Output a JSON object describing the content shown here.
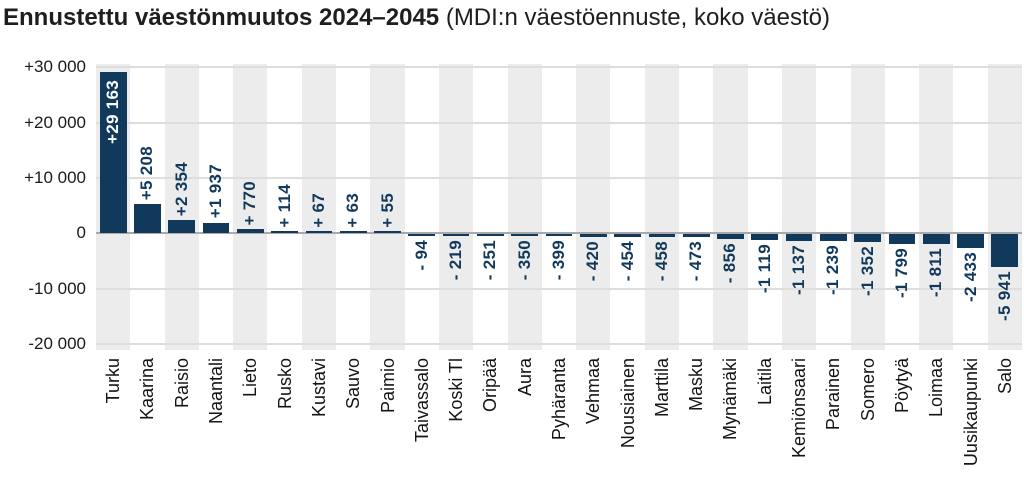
{
  "page": {
    "title_main": "Ennustettu väestönmuutos 2024–2045",
    "title_sub": " (MDI:n väestöennuste, koko väestö)"
  },
  "colors": {
    "bar": "#11395b",
    "value_label": "#11395b",
    "value_label_inside_bar": "#ffffff",
    "column_stripe": "#ececec",
    "gridline": "#dedede",
    "zero_line": "#a9a9a9",
    "text": "#1a1a1a"
  },
  "chart_data": {
    "type": "bar",
    "title": "Ennustettu väestönmuutos 2024–2045",
    "subtitle": "MDI:n väestöennuste, koko väestö",
    "xlabel": "",
    "ylabel": "",
    "categories": [
      "Turku",
      "Kaarina",
      "Raisio",
      "Naantali",
      "Lieto",
      "Rusko",
      "Kustavi",
      "Sauvo",
      "Paimio",
      "Taivassalo",
      "Koski Tl",
      "Oripää",
      "Aura",
      "Pyhäranta",
      "Vehmaa",
      "Nousiainen",
      "Marttila",
      "Masku",
      "Mynämäki",
      "Laitila",
      "Kemiönsaari",
      "Parainen",
      "Somero",
      "Pöytyä",
      "Loimaa",
      "Uusikaupunki",
      "Salo"
    ],
    "values": [
      29163,
      5208,
      2354,
      1937,
      770,
      114,
      67,
      63,
      55,
      -94,
      -219,
      -251,
      -350,
      -399,
      -420,
      -454,
      -458,
      -473,
      -856,
      -1119,
      -1137,
      -1239,
      -1352,
      -1799,
      -1811,
      -2433,
      -5941
    ],
    "value_labels": [
      "+29 163",
      "+5 208",
      "+2 354",
      "+1 937",
      "+ 770",
      "+ 114",
      "+ 67",
      "+ 63",
      "+ 55",
      "- 94",
      "- 219",
      "- 251",
      "- 350",
      "- 399",
      "- 420",
      "- 454",
      "- 458",
      "- 473",
      "- 856",
      "-1 119",
      "-1 137",
      "-1 239",
      "-1 352",
      "-1 799",
      "-1 811",
      "-2 433",
      "-5 941"
    ],
    "yticks": [
      {
        "value": 30000,
        "label": "+30 000"
      },
      {
        "value": 20000,
        "label": "+20 000"
      },
      {
        "value": 10000,
        "label": "+10 000"
      },
      {
        "value": 0,
        "label": "0"
      },
      {
        "value": -10000,
        "label": "-10 000"
      },
      {
        "value": -20000,
        "label": "-20 000"
      }
    ],
    "ylim": [
      -21100,
      30600
    ],
    "grid": true,
    "legend": null,
    "first_bar_label_inside": true,
    "alternating_column_stripes": true
  }
}
